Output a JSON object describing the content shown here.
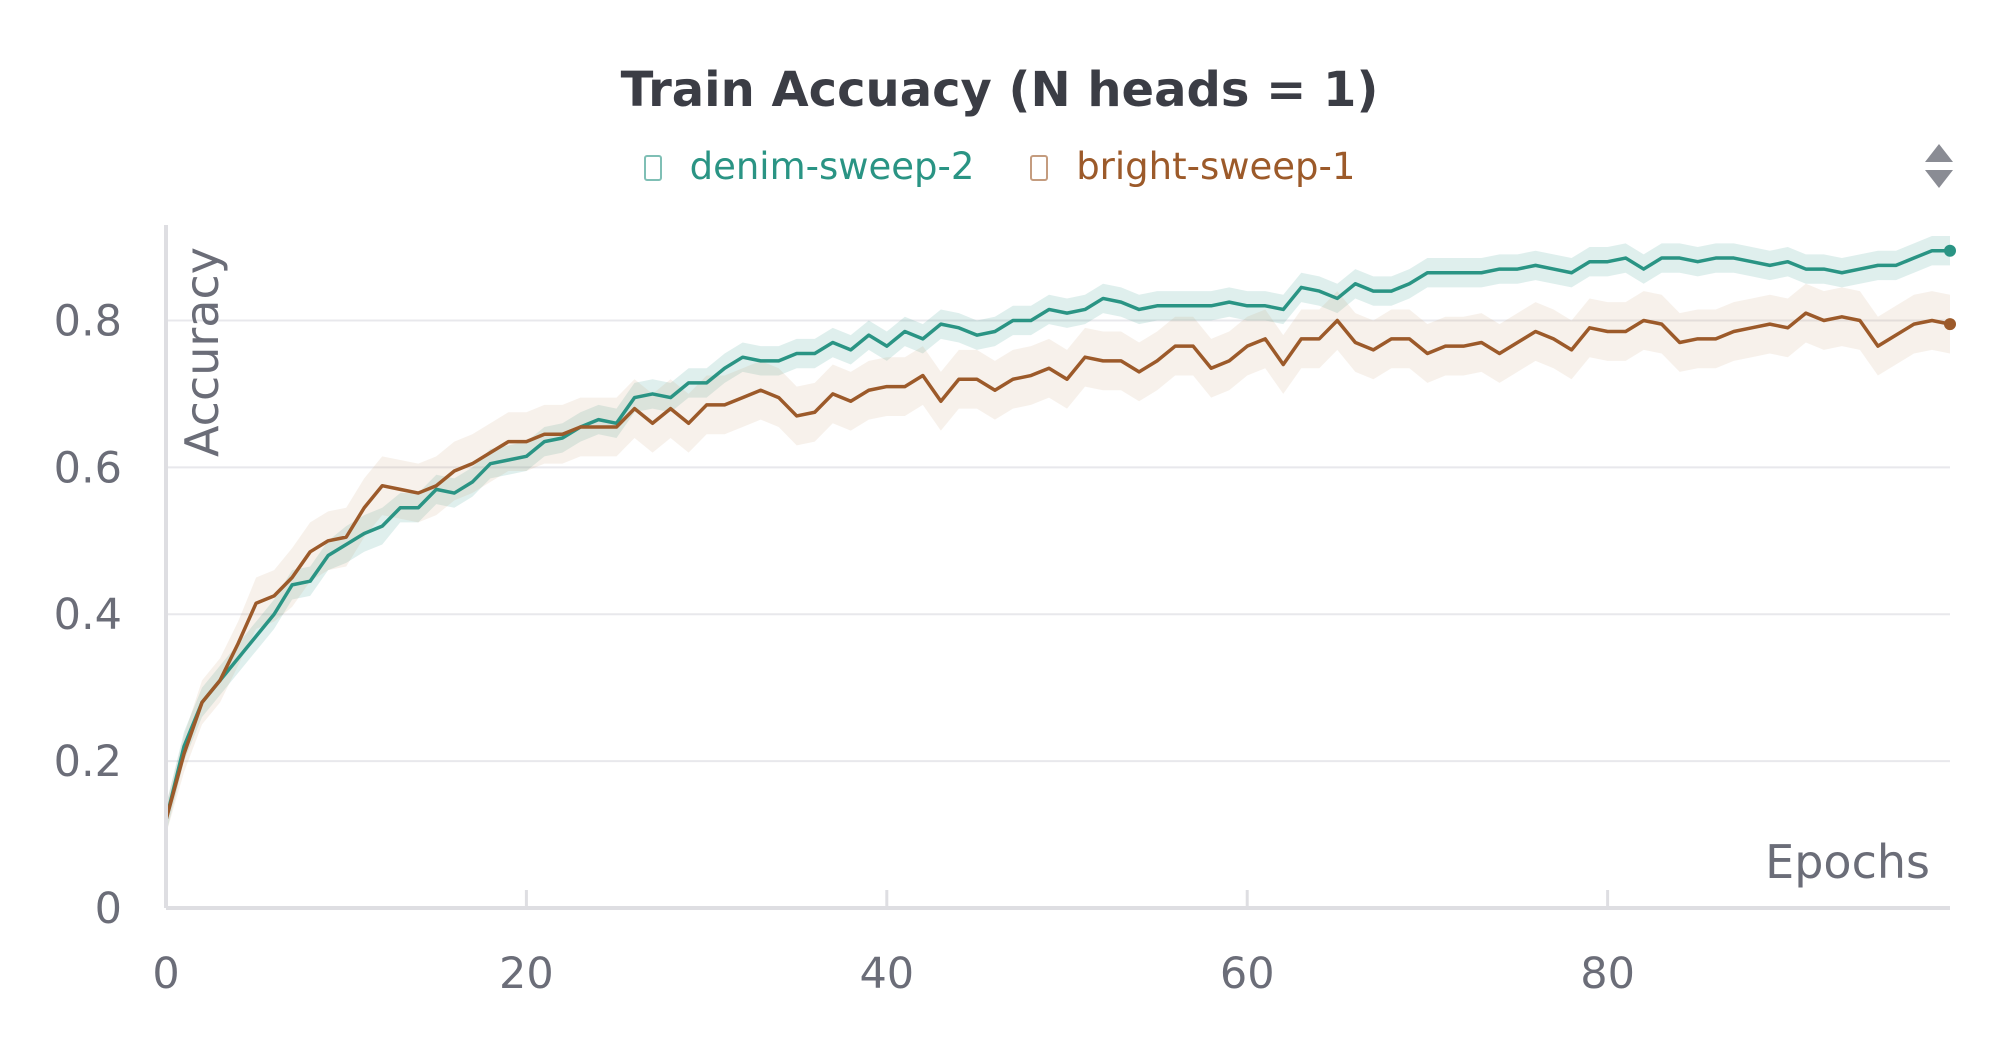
{
  "chart_data": {
    "type": "line",
    "title": "Train Accuacy (N heads = 1)",
    "xlabel": "Epochs",
    "ylabel": "Accuracy",
    "xlim": [
      0,
      99
    ],
    "ylim": [
      0,
      0.93
    ],
    "x_ticks": [
      "0",
      "20",
      "40",
      "60",
      "80"
    ],
    "x_tick_values": [
      0,
      20,
      40,
      60,
      80
    ],
    "y_ticks": [
      "0",
      "0.2",
      "0.4",
      "0.6",
      "0.8"
    ],
    "y_tick_values": [
      0,
      0.2,
      0.4,
      0.6,
      0.8
    ],
    "grid": "horizontal",
    "legend": "top-center",
    "series": [
      {
        "name": "denim-sweep-2",
        "color": "#2a9484",
        "band_color": "#2a9484",
        "values": [
          0.12,
          0.22,
          0.28,
          0.31,
          0.34,
          0.37,
          0.4,
          0.44,
          0.445,
          0.48,
          0.495,
          0.51,
          0.52,
          0.545,
          0.545,
          0.57,
          0.565,
          0.58,
          0.605,
          0.61,
          0.615,
          0.635,
          0.64,
          0.655,
          0.665,
          0.66,
          0.695,
          0.7,
          0.695,
          0.715,
          0.715,
          0.735,
          0.75,
          0.745,
          0.745,
          0.755,
          0.755,
          0.77,
          0.76,
          0.78,
          0.765,
          0.785,
          0.775,
          0.795,
          0.79,
          0.78,
          0.785,
          0.8,
          0.8,
          0.815,
          0.81,
          0.815,
          0.83,
          0.825,
          0.815,
          0.82,
          0.82,
          0.82,
          0.82,
          0.825,
          0.82,
          0.82,
          0.815,
          0.845,
          0.84,
          0.83,
          0.85,
          0.84,
          0.84,
          0.85,
          0.865,
          0.865,
          0.865,
          0.865,
          0.87,
          0.87,
          0.875,
          0.87,
          0.865,
          0.88,
          0.88,
          0.885,
          0.87,
          0.885,
          0.885,
          0.88,
          0.885,
          0.885,
          0.88,
          0.875,
          0.88,
          0.87,
          0.87,
          0.865,
          0.87,
          0.875,
          0.875,
          0.885,
          0.895,
          0.895
        ],
        "band": [
          0.02,
          0.02,
          0.02,
          0.02,
          0.02,
          0.02,
          0.02,
          0.02,
          0.02,
          0.02,
          0.025,
          0.025,
          0.025,
          0.02,
          0.02,
          0.02,
          0.02,
          0.02,
          0.02,
          0.02,
          0.02,
          0.02,
          0.02,
          0.02,
          0.02,
          0.02,
          0.02,
          0.02,
          0.02,
          0.02,
          0.02,
          0.02,
          0.02,
          0.02,
          0.02,
          0.02,
          0.02,
          0.02,
          0.02,
          0.02,
          0.02,
          0.02,
          0.02,
          0.02,
          0.02,
          0.02,
          0.02,
          0.02,
          0.02,
          0.02,
          0.02,
          0.02,
          0.02,
          0.02,
          0.02,
          0.02,
          0.02,
          0.02,
          0.02,
          0.02,
          0.02,
          0.02,
          0.02,
          0.02,
          0.02,
          0.02,
          0.02,
          0.02,
          0.02,
          0.02,
          0.02,
          0.02,
          0.02,
          0.02,
          0.02,
          0.02,
          0.02,
          0.02,
          0.02,
          0.02,
          0.02,
          0.02,
          0.02,
          0.02,
          0.02,
          0.02,
          0.02,
          0.02,
          0.02,
          0.02,
          0.02,
          0.02,
          0.02,
          0.02,
          0.02,
          0.02,
          0.02,
          0.02,
          0.02,
          0.02
        ]
      },
      {
        "name": "bright-sweep-1",
        "color": "#9c5a2a",
        "band_color": "#c8a07a",
        "values": [
          0.12,
          0.21,
          0.28,
          0.31,
          0.36,
          0.415,
          0.425,
          0.45,
          0.485,
          0.5,
          0.505,
          0.545,
          0.575,
          0.57,
          0.565,
          0.575,
          0.595,
          0.605,
          0.62,
          0.635,
          0.635,
          0.645,
          0.645,
          0.655,
          0.655,
          0.655,
          0.68,
          0.66,
          0.68,
          0.66,
          0.685,
          0.685,
          0.695,
          0.705,
          0.695,
          0.67,
          0.675,
          0.7,
          0.69,
          0.705,
          0.71,
          0.71,
          0.725,
          0.69,
          0.72,
          0.72,
          0.705,
          0.72,
          0.725,
          0.735,
          0.72,
          0.75,
          0.745,
          0.745,
          0.73,
          0.745,
          0.765,
          0.765,
          0.735,
          0.745,
          0.765,
          0.775,
          0.74,
          0.775,
          0.775,
          0.8,
          0.77,
          0.76,
          0.775,
          0.775,
          0.755,
          0.765,
          0.765,
          0.77,
          0.755,
          0.77,
          0.785,
          0.775,
          0.76,
          0.79,
          0.785,
          0.785,
          0.8,
          0.795,
          0.77,
          0.775,
          0.775,
          0.785,
          0.79,
          0.795,
          0.79,
          0.81,
          0.8,
          0.805,
          0.8,
          0.765,
          0.78,
          0.795,
          0.8,
          0.795
        ],
        "band": [
          0.02,
          0.025,
          0.03,
          0.03,
          0.03,
          0.035,
          0.035,
          0.04,
          0.04,
          0.04,
          0.04,
          0.04,
          0.04,
          0.04,
          0.04,
          0.04,
          0.04,
          0.04,
          0.04,
          0.04,
          0.04,
          0.04,
          0.04,
          0.04,
          0.04,
          0.04,
          0.04,
          0.04,
          0.04,
          0.04,
          0.04,
          0.04,
          0.04,
          0.04,
          0.04,
          0.04,
          0.04,
          0.04,
          0.04,
          0.04,
          0.04,
          0.04,
          0.04,
          0.04,
          0.04,
          0.04,
          0.04,
          0.04,
          0.04,
          0.04,
          0.04,
          0.04,
          0.04,
          0.04,
          0.04,
          0.04,
          0.04,
          0.04,
          0.04,
          0.04,
          0.04,
          0.04,
          0.04,
          0.04,
          0.04,
          0.04,
          0.04,
          0.04,
          0.04,
          0.04,
          0.04,
          0.04,
          0.04,
          0.04,
          0.04,
          0.04,
          0.04,
          0.04,
          0.04,
          0.04,
          0.04,
          0.04,
          0.04,
          0.04,
          0.04,
          0.04,
          0.04,
          0.04,
          0.04,
          0.04,
          0.04,
          0.04,
          0.04,
          0.04,
          0.04,
          0.04,
          0.04,
          0.04,
          0.04,
          0.04
        ]
      }
    ]
  }
}
